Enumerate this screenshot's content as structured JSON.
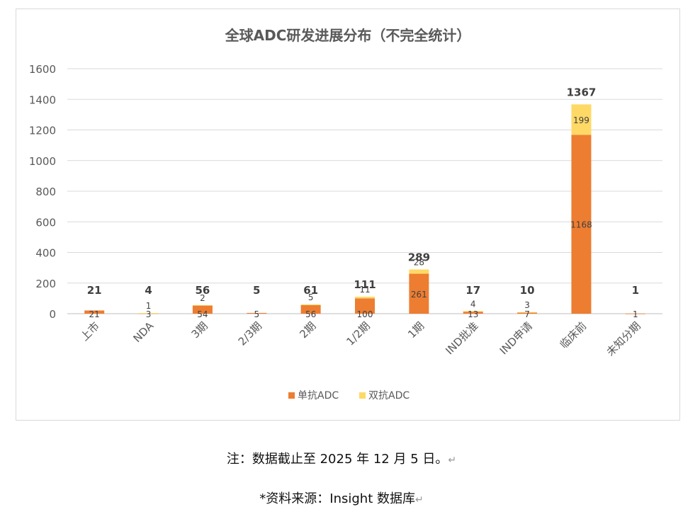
{
  "chart_data": {
    "type": "bar",
    "stacked": true,
    "title": "全球ADC研发进展分布（不完全统计）",
    "categories": [
      "上市",
      "NDA",
      "3期",
      "2/3期",
      "2期",
      "1/2期",
      "1期",
      "IND批准",
      "IND申请",
      "临床前",
      "未知分期"
    ],
    "series": [
      {
        "name": "单抗ADC",
        "color": "#ED7D31",
        "values": [
          21,
          3,
          54,
          5,
          56,
          100,
          261,
          13,
          7,
          1168,
          1
        ]
      },
      {
        "name": "双抗ADC",
        "color": "#FFD966",
        "values": [
          0,
          1,
          2,
          0,
          5,
          11,
          28,
          4,
          3,
          199,
          0
        ]
      }
    ],
    "totals": [
      21,
      4,
      56,
      5,
      61,
      111,
      289,
      17,
      10,
      1367,
      1
    ],
    "series_labels": [
      [
        "21",
        "3",
        "54",
        "5",
        "56",
        "100",
        "261",
        "13",
        "7",
        "1168",
        "1"
      ],
      [
        "",
        "1",
        "2",
        "",
        "5",
        "11",
        "28",
        "4",
        "3",
        "199",
        ""
      ]
    ],
    "ylim": [
      0,
      1600
    ],
    "yticks": [
      0,
      200,
      400,
      600,
      800,
      1000,
      1200,
      1400,
      1600
    ],
    "grid": true,
    "legend_position": "bottom"
  },
  "footer": {
    "note": "注：数据截止至 2025 年 12 月 5 日。",
    "source": "*资料来源：Insight  数据库",
    "return_mark": "↵"
  }
}
